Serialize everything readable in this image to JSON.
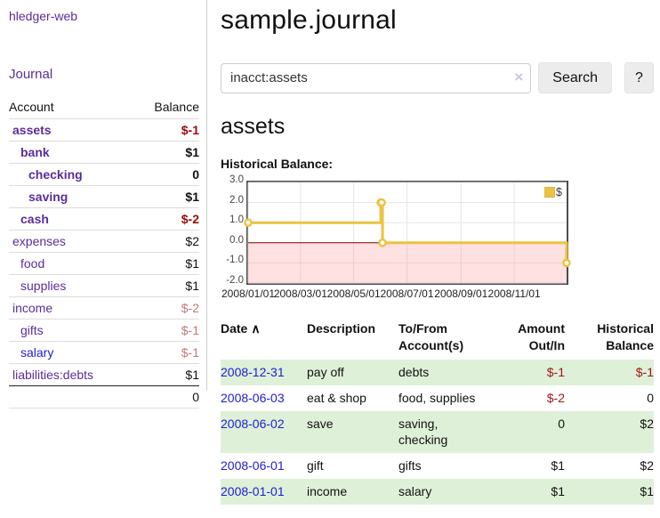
{
  "app": {
    "title": "hledger-web"
  },
  "sidebar": {
    "journal_link": "Journal",
    "table": {
      "headers": {
        "account": "Account",
        "balance": "Balance"
      },
      "rows": [
        {
          "account": "assets",
          "balance": "$-1"
        },
        {
          "account": "bank",
          "balance": "$1"
        },
        {
          "account": "checking",
          "balance": "0"
        },
        {
          "account": "saving",
          "balance": "$1"
        },
        {
          "account": "cash",
          "balance": "$-2"
        },
        {
          "account": "expenses",
          "balance": "$2"
        },
        {
          "account": "food",
          "balance": "$1"
        },
        {
          "account": "supplies",
          "balance": "$1"
        },
        {
          "account": "income",
          "balance": "$-2"
        },
        {
          "account": "gifts",
          "balance": "$-1"
        },
        {
          "account": "salary",
          "balance": "$-1"
        },
        {
          "account": "liabilities:debts",
          "balance": "$1"
        }
      ],
      "total": "0"
    }
  },
  "main": {
    "title": "sample.journal",
    "search": {
      "value": "inacct:assets",
      "clear_icon": "×",
      "button_label": "Search",
      "help_label": "?"
    },
    "account_heading": "assets",
    "chart_caption": "Historical Balance:"
  },
  "chart_data": {
    "type": "line",
    "title": "Historical Balance",
    "step": true,
    "series": [
      {
        "name": "$",
        "color": "#edc240",
        "points": [
          {
            "date": "2008-01-01",
            "value": 1
          },
          {
            "date": "2008-06-01",
            "value": 2
          },
          {
            "date": "2008-06-02",
            "value": 2
          },
          {
            "date": "2008-06-03",
            "value": 0
          },
          {
            "date": "2008-12-31",
            "value": -1
          }
        ]
      }
    ],
    "xlim": [
      "2008-01-01",
      "2008-12-31"
    ],
    "ylim": [
      -2,
      3
    ],
    "xticks": [
      "2008/01/01",
      "2008/03/01",
      "2008/05/01",
      "2008/07/01",
      "2008/09/01",
      "2008/11/01"
    ],
    "yticks": [
      "3.0",
      "2.0",
      "1.0",
      "0.0",
      "-1.0",
      "-2.0"
    ],
    "grid": true,
    "gridline_color": "#e6e6e6",
    "legend": {
      "position": "northeast",
      "label": "$",
      "swatch_color": "#edc240"
    },
    "negative_region_color": "rgba(255,120,120,0.22)",
    "zero_line_color": "#8b0000"
  },
  "register": {
    "headers": {
      "date": "Date",
      "sort_icon": "∧",
      "description": "Description",
      "accounts": "To/From Account(s)",
      "amount": "Amount Out/In",
      "balance": "Historical Balance"
    },
    "rows": [
      {
        "date": "2008-12-31",
        "description": "pay off",
        "accounts": "debts",
        "amount": "$-1",
        "balance": "$-1"
      },
      {
        "date": "2008-06-03",
        "description": "eat & shop",
        "accounts": "food, supplies",
        "amount": "$-2",
        "balance": "0"
      },
      {
        "date": "2008-06-02",
        "description": "save",
        "accounts": "saving, checking",
        "amount": "0",
        "balance": "$2"
      },
      {
        "date": "2008-06-01",
        "description": "gift",
        "accounts": "gifts",
        "amount": "$1",
        "balance": "$2"
      },
      {
        "date": "2008-01-01",
        "description": "income",
        "accounts": "salary",
        "amount": "$1",
        "balance": "$1"
      }
    ]
  }
}
